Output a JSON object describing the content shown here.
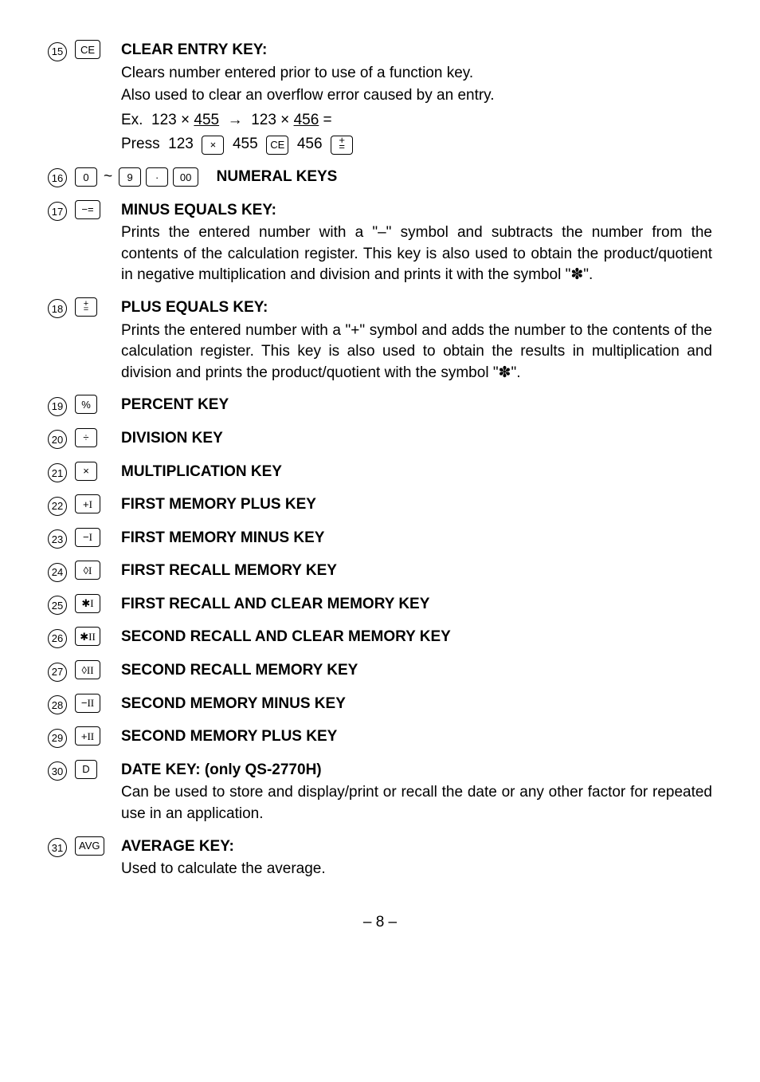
{
  "items": [
    {
      "num": "15",
      "keys": [
        {
          "label": "CE",
          "cls": "wide"
        }
      ],
      "title": "CLEAR ENTRY KEY:",
      "desc_lines": [
        "Clears number entered prior to use of a function key.",
        "Also used to clear an overflow error caused by an entry."
      ],
      "example_html": "Ex.&nbsp;&nbsp;123 × <span class='underline'>455</span>&nbsp;&nbsp;→&nbsp;&nbsp;123 × <span class='underline'>456</span> =",
      "press_html": "Press&nbsp;&nbsp;123&nbsp;&nbsp;<span class='keybox'>×</span>&nbsp;&nbsp;455&nbsp;&nbsp;<span class='keybox'>CE</span>&nbsp;&nbsp;456&nbsp;&nbsp;<span class='keybox'><span style='position:relative'><span style='position:absolute;left:0;top:-6px'>+</span><span style='position:absolute;left:0;top:2px'>=</span><span style='visibility:hidden'>+</span></span></span>"
    },
    {
      "num": "16",
      "keys_special": "numerals",
      "title": "NUMERAL KEYS",
      "title_inline": true
    },
    {
      "num": "17",
      "keys": [
        {
          "label": "−=",
          "cls": "wide"
        }
      ],
      "title": "MINUS EQUALS KEY:",
      "desc_justify": "Prints the entered number with a \"–\" symbol and subtracts the number from the contents of the calculation register. This key is also used to obtain the product/quotient in negative multiplication and division and prints it with the symbol \"✽\"."
    },
    {
      "num": "18",
      "keys_special": "plusequals",
      "title": "PLUS EQUALS KEY:",
      "desc_justify": "Prints the entered number with a \"+\" symbol and adds the number to the contents of the calculation register. This key is also used to obtain the results in multiplication and division and prints the product/quotient with the symbol \"✽\"."
    },
    {
      "num": "19",
      "keys": [
        {
          "label": "%"
        }
      ],
      "title": "PERCENT KEY"
    },
    {
      "num": "20",
      "keys": [
        {
          "label": "÷"
        }
      ],
      "title": "DIVISION KEY"
    },
    {
      "num": "21",
      "keys": [
        {
          "label": "×"
        }
      ],
      "title": "MULTIPLICATION KEY"
    },
    {
      "num": "22",
      "keys_html": "+<span style='font-family:serif'>I</span>",
      "title": "FIRST MEMORY PLUS KEY"
    },
    {
      "num": "23",
      "keys_html": "−<span style='font-family:serif'>I</span>",
      "title": "FIRST MEMORY MINUS KEY"
    },
    {
      "num": "24",
      "keys_html": "◊<span style='font-family:serif'>I</span>",
      "title": "FIRST RECALL MEMORY KEY"
    },
    {
      "num": "25",
      "keys_html": "✱<span style='font-family:serif'>I</span>",
      "title": "FIRST RECALL AND CLEAR MEMORY KEY"
    },
    {
      "num": "26",
      "keys_html": "✱<span style='font-family:serif'>II</span>",
      "title": "SECOND RECALL AND CLEAR MEMORY KEY"
    },
    {
      "num": "27",
      "keys_html": "◊<span style='font-family:serif'>II</span>",
      "title": "SECOND RECALL MEMORY KEY"
    },
    {
      "num": "28",
      "keys_html": "−<span style='font-family:serif'>II</span>",
      "title": "SECOND MEMORY MINUS KEY"
    },
    {
      "num": "29",
      "keys_html": "+<span style='font-family:serif'>II</span>",
      "title": "SECOND MEMORY PLUS KEY"
    },
    {
      "num": "30",
      "keys": [
        {
          "label": "D"
        }
      ],
      "title": "DATE KEY: (only QS-2770H)",
      "desc_justify": "Can be used to store and display/print or recall the date or any other factor for repeated use in an application."
    },
    {
      "num": "31",
      "keys": [
        {
          "label": "AVG",
          "cls": "wide"
        }
      ],
      "title": "AVERAGE KEY:",
      "desc_lines": [
        "Used to calculate the average."
      ]
    }
  ],
  "pagenum": "– 8 –"
}
